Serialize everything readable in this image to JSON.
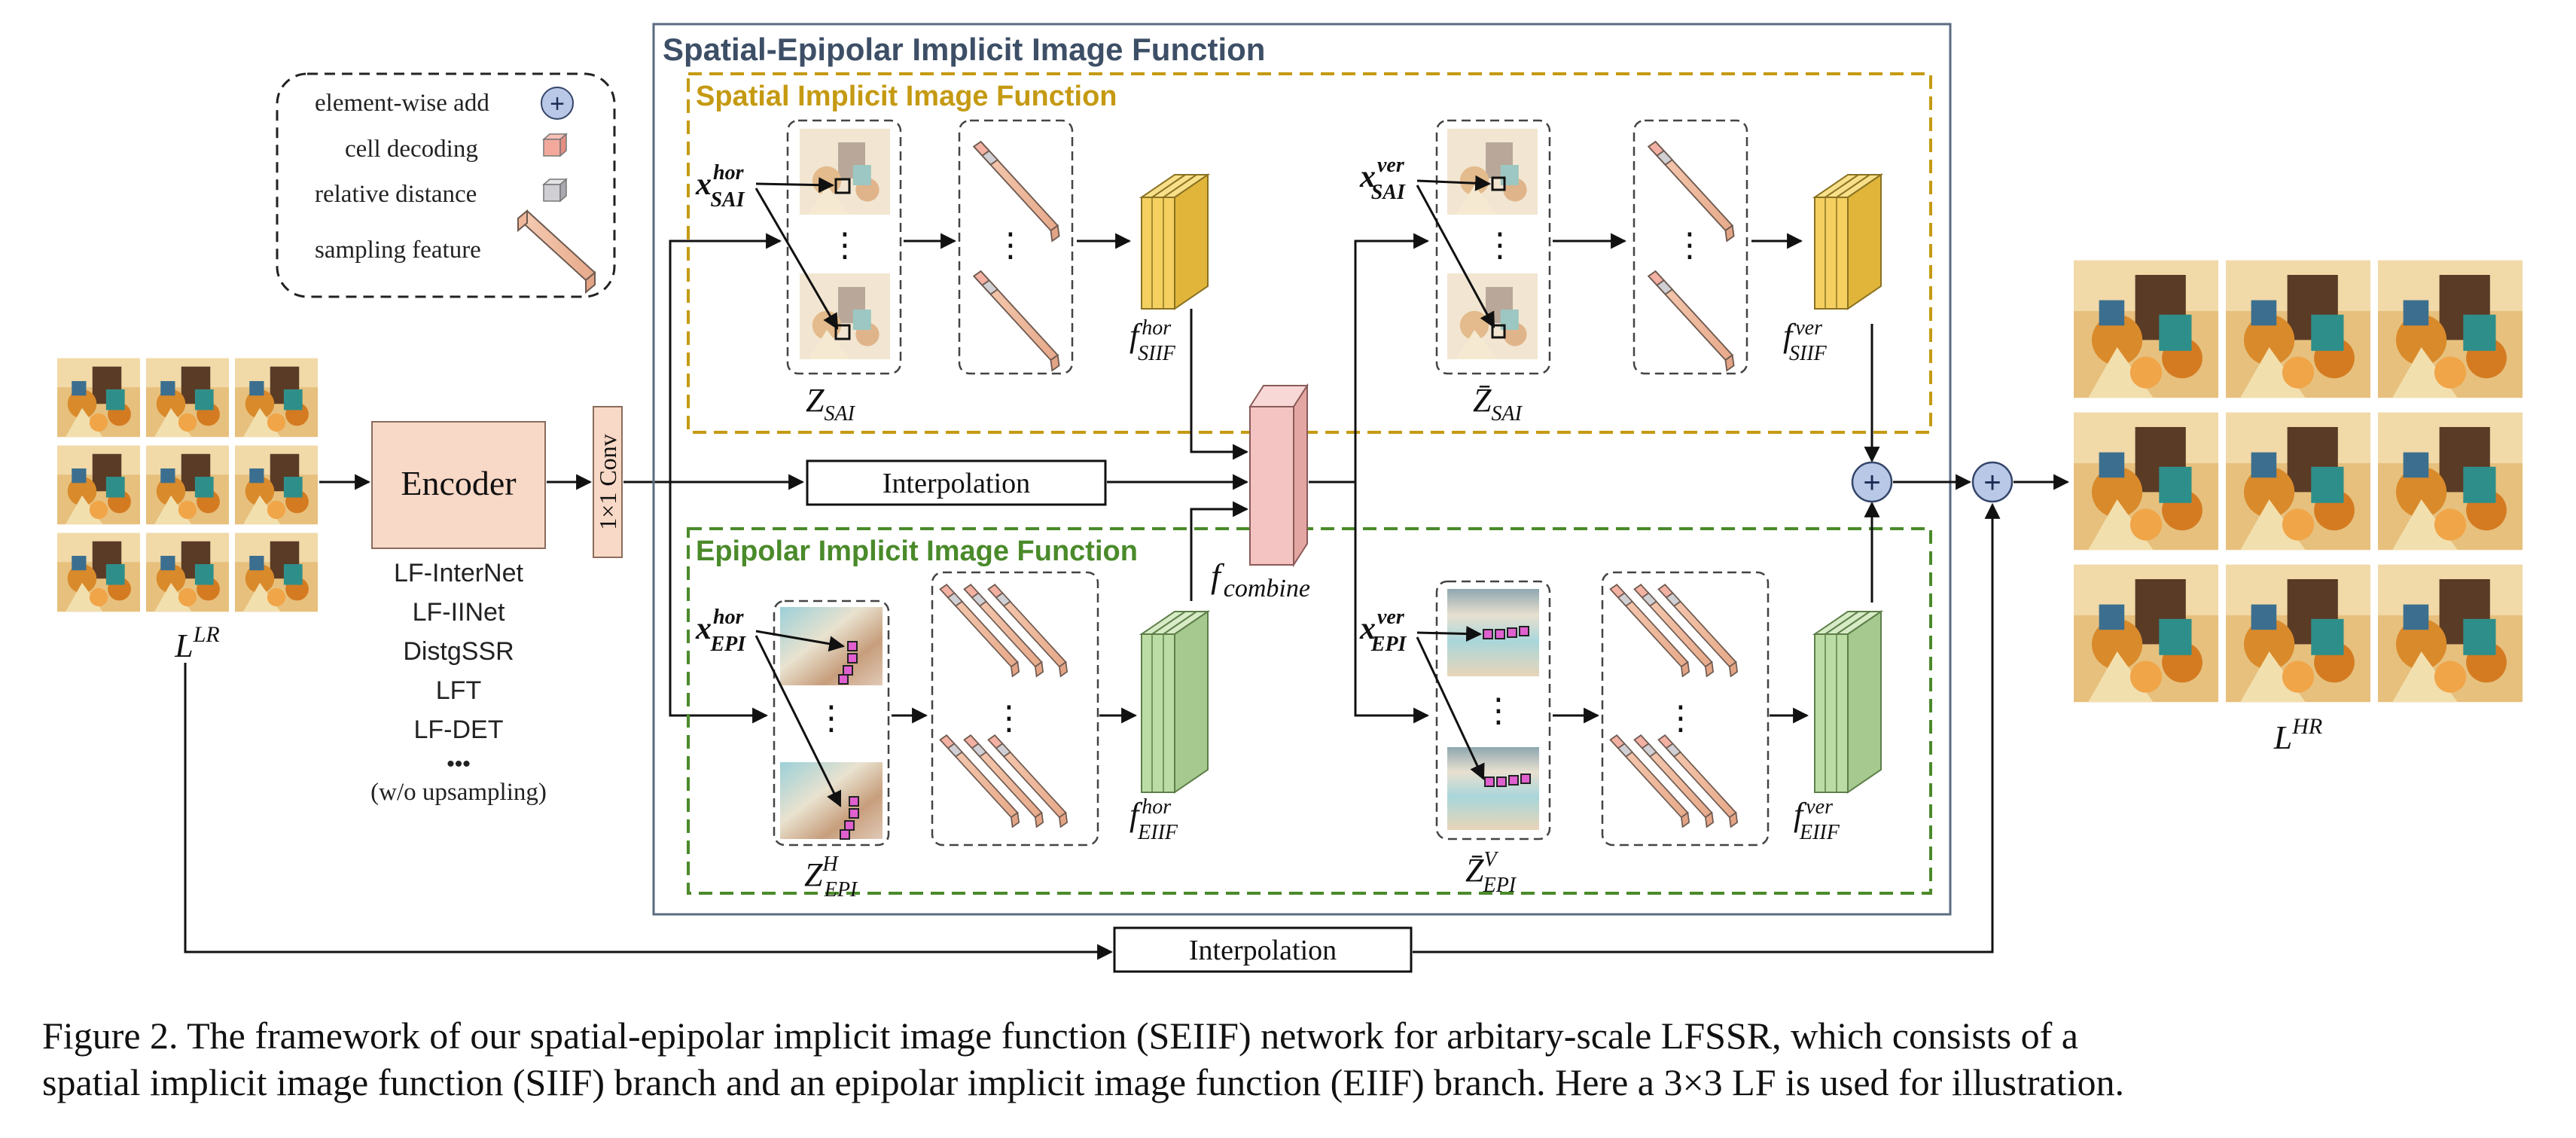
{
  "legend": {
    "add": "element-wise add",
    "cell": "cell decoding",
    "rel": "relative distance",
    "samp": "sampling feature"
  },
  "titles": {
    "seiif": "Spatial-Epipolar Implicit Image Function",
    "siif": "Spatial Implicit Image Function",
    "eiif": "Epipolar Implicit Image Function"
  },
  "encoder": {
    "label": "Encoder",
    "conv": "1×1 Conv",
    "backbones": [
      "LF-InterNet",
      "LF-IINet",
      "DistgSSR",
      "LFT",
      "LF-DET",
      "•••",
      "(w/o upsampling)"
    ]
  },
  "interp": "Interpolation",
  "input_label": "L",
  "input_sup": "LR",
  "output_label": "L",
  "output_sup": "HR",
  "x_labels": {
    "sai_hor": {
      "main": "x",
      "sup": "hor",
      "sub": "SAI"
    },
    "sai_ver": {
      "main": "x",
      "sup": "ver",
      "sub": "SAI"
    },
    "epi_hor": {
      "main": "x",
      "sup": "hor",
      "sub": "EPI"
    },
    "epi_ver": {
      "main": "x",
      "sup": "ver",
      "sub": "EPI"
    }
  },
  "z_labels": {
    "sai": {
      "main": "Z",
      "sub": "SAI"
    },
    "sai_bar": {
      "main": "Z̄",
      "sub": "SAI"
    },
    "epi": {
      "main": "Z",
      "sup": "H",
      "sub": "EPI"
    },
    "epi_bar": {
      "main": "Z̄",
      "sup": "V",
      "sub": "EPI"
    }
  },
  "f_labels": {
    "siif_hor": {
      "main": "f",
      "sup": "hor",
      "sub": "SIIF"
    },
    "siif_ver": {
      "main": "f",
      "sup": "ver",
      "sub": "SIIF"
    },
    "eiif_hor": {
      "main": "f",
      "sup": "hor",
      "sub": "EIIF"
    },
    "eiif_ver": {
      "main": "f",
      "sup": "ver",
      "sub": "EIIF"
    },
    "combine": {
      "main": "f",
      "sub": "combine"
    }
  },
  "plus": "+",
  "dots": "⋮",
  "caption": {
    "line1": "Figure 2.  The framework of our spatial-epipolar implicit image function (SEIIF) network for arbitary-scale LFSSR, which consists of a",
    "line2": "spatial implicit image function (SIIF) branch and an epipolar implicit image function (EIIF) branch. Here a 3×3 LF is used for illustration."
  },
  "colors": {
    "seiif_border": "#5a6b80",
    "siif_border": "#c59a12",
    "eiif_border": "#4a8a2a",
    "seiif_title": "#3d4f66",
    "siif_title": "#c59a12",
    "eiif_title": "#4a8a2a",
    "yellow_block": "#f2c94c",
    "green_block": "#b5d59e",
    "encoder_fill": "#f8d8c6",
    "plus_fill": "#b9c8e6"
  }
}
